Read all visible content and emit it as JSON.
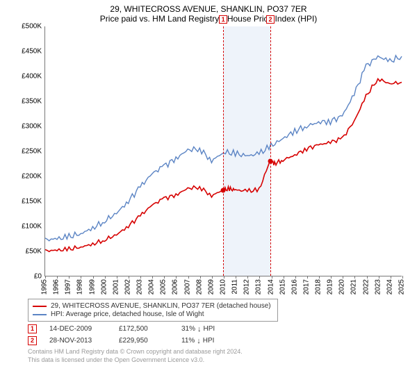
{
  "title": "29, WHITECROSS AVENUE, SHANKLIN, PO37 7ER",
  "subtitle": "Price paid vs. HM Land Registry's House Price Index (HPI)",
  "chart": {
    "type": "line",
    "xlim": [
      1995,
      2025
    ],
    "ylim": [
      0,
      500000
    ],
    "ytick_step": 50000,
    "ytick_labels": [
      "£0",
      "£50K",
      "£100K",
      "£150K",
      "£200K",
      "£250K",
      "£300K",
      "£350K",
      "£400K",
      "£450K",
      "£500K"
    ],
    "xticks": [
      1995,
      1996,
      1997,
      1998,
      1999,
      2000,
      2001,
      2002,
      2003,
      2004,
      2005,
      2006,
      2007,
      2008,
      2009,
      2010,
      2011,
      2012,
      2013,
      2014,
      2015,
      2016,
      2017,
      2018,
      2019,
      2020,
      2021,
      2022,
      2023,
      2024,
      2025
    ],
    "axis_color": "#777777",
    "background_color": "#ffffff",
    "shaded_region": {
      "xstart": 2009.95,
      "xend": 2013.91,
      "fill": "#eef3fa"
    },
    "series": [
      {
        "name": "price-paid",
        "label": "29, WHITECROSS AVENUE, SHANKLIN, PO37 7ER (detached house)",
        "color": "#d60000",
        "line_width": 1.6,
        "data": [
          [
            1995,
            50000
          ],
          [
            1996,
            51000
          ],
          [
            1997,
            53000
          ],
          [
            1998,
            58000
          ],
          [
            1999,
            63000
          ],
          [
            2000,
            72000
          ],
          [
            2001,
            82000
          ],
          [
            2002,
            100000
          ],
          [
            2003,
            120000
          ],
          [
            2004,
            142000
          ],
          [
            2005,
            155000
          ],
          [
            2006,
            162000
          ],
          [
            2007,
            175000
          ],
          [
            2008,
            178000
          ],
          [
            2009,
            160000
          ],
          [
            2009.95,
            172500
          ],
          [
            2010.5,
            174000
          ],
          [
            2011,
            172000
          ],
          [
            2012,
            170000
          ],
          [
            2013,
            172000
          ],
          [
            2013.91,
            229950
          ],
          [
            2014.3,
            225000
          ],
          [
            2015,
            232000
          ],
          [
            2016,
            242000
          ],
          [
            2017,
            255000
          ],
          [
            2018,
            262000
          ],
          [
            2019,
            268000
          ],
          [
            2020,
            275000
          ],
          [
            2021,
            310000
          ],
          [
            2022,
            360000
          ],
          [
            2023,
            395000
          ],
          [
            2024,
            385000
          ],
          [
            2025,
            388000
          ]
        ]
      },
      {
        "name": "hpi",
        "label": "HPI: Average price, detached house, Isle of Wight",
        "color": "#5b84c4",
        "line_width": 1.4,
        "data": [
          [
            1995,
            72000
          ],
          [
            1996,
            74000
          ],
          [
            1997,
            78000
          ],
          [
            1998,
            85000
          ],
          [
            1999,
            95000
          ],
          [
            2000,
            110000
          ],
          [
            2001,
            125000
          ],
          [
            2002,
            150000
          ],
          [
            2003,
            178000
          ],
          [
            2004,
            205000
          ],
          [
            2005,
            220000
          ],
          [
            2006,
            235000
          ],
          [
            2007,
            252000
          ],
          [
            2008,
            255000
          ],
          [
            2009,
            230000
          ],
          [
            2010,
            248000
          ],
          [
            2011,
            245000
          ],
          [
            2012,
            240000
          ],
          [
            2013,
            245000
          ],
          [
            2014,
            260000
          ],
          [
            2015,
            275000
          ],
          [
            2016,
            290000
          ],
          [
            2017,
            300000
          ],
          [
            2018,
            308000
          ],
          [
            2019,
            310000
          ],
          [
            2020,
            320000
          ],
          [
            2021,
            365000
          ],
          [
            2022,
            420000
          ],
          [
            2023,
            440000
          ],
          [
            2024,
            430000
          ],
          [
            2025,
            440000
          ]
        ]
      }
    ],
    "markers": [
      {
        "id": "1",
        "x": 2009.95,
        "y": 172500
      },
      {
        "id": "2",
        "x": 2013.91,
        "y": 229950
      }
    ]
  },
  "legend": {
    "items": [
      {
        "color": "#d60000",
        "label": "29, WHITECROSS AVENUE, SHANKLIN, PO37 7ER (detached house)"
      },
      {
        "color": "#5b84c4",
        "label": "HPI: Average price, detached house, Isle of Wight"
      }
    ]
  },
  "datapoints": [
    {
      "id": "1",
      "date": "14-DEC-2009",
      "price": "£172,500",
      "diff_pct": "31%",
      "diff_dir": "↓",
      "diff_suffix": "HPI"
    },
    {
      "id": "2",
      "date": "28-NOV-2013",
      "price": "£229,950",
      "diff_pct": "11%",
      "diff_dir": "↓",
      "diff_suffix": "HPI"
    }
  ],
  "footer": {
    "line1": "Contains HM Land Registry data © Crown copyright and database right 2024.",
    "line2": "This data is licensed under the Open Government Licence v3.0."
  }
}
